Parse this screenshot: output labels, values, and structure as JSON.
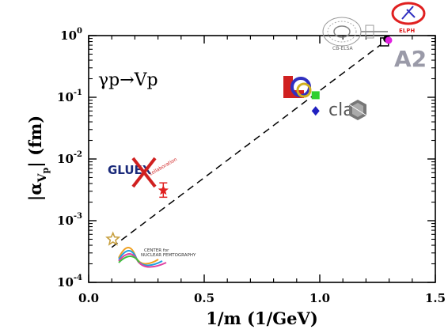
{
  "chart_data": {
    "type": "scatter",
    "title": "",
    "reaction_label": "γp→Vp",
    "xlabel": "1/m (1/GeV)",
    "ylabel": {
      "base": "|α",
      "sub": "V",
      "subsub": "p",
      "tail": "| (fm)"
    },
    "xlim": [
      0.0,
      1.5
    ],
    "ylim": [
      0.0001,
      1.0
    ],
    "yscale": "log",
    "x_ticks": [
      "0.0",
      "0.5",
      "1.0",
      "1.5"
    ],
    "y_ticks": [
      {
        "base": "10",
        "exp": "-4"
      },
      {
        "base": "10",
        "exp": "-3"
      },
      {
        "base": "10",
        "exp": "-2"
      },
      {
        "base": "10",
        "exp": "-1"
      },
      {
        "base": "10",
        "exp": "0"
      }
    ],
    "points": [
      {
        "x": 0.105,
        "y": 0.0005,
        "color": "#c8a040",
        "marker": "open-star"
      },
      {
        "x": 0.323,
        "y": 0.0031,
        "color": "#e02020",
        "marker": "filled-star",
        "yerr": [
          0.0024,
          0.0041
        ]
      },
      {
        "x": 0.982,
        "y": 0.06,
        "color": "#2020c0",
        "marker": "filled-diamond"
      },
      {
        "x": 0.982,
        "y": 0.108,
        "color": "#30d030",
        "marker": "filled-square"
      },
      {
        "x": 1.28,
        "y": 0.79,
        "color": "#000000",
        "marker": "open-square"
      },
      {
        "x": 1.29,
        "y": 0.88,
        "color": "#000000",
        "marker": "filled-circle"
      },
      {
        "x": 1.298,
        "y": 0.84,
        "color": "#e020e0",
        "marker": "filled-circle"
      }
    ],
    "fit_line": {
      "x": [
        0.1,
        1.3
      ],
      "y": [
        0.00037,
        0.9
      ],
      "style": "dashed"
    },
    "logos": {
      "gluex": "GLUEX",
      "gluex_small": "collaboration",
      "clas": "clas",
      "a2": "A2",
      "elph": "ELPH",
      "cb_elsa": "CB-ELSA",
      "center": "CENTER for",
      "center2": "NUCLEAR FEMTOGRAPHY"
    }
  }
}
